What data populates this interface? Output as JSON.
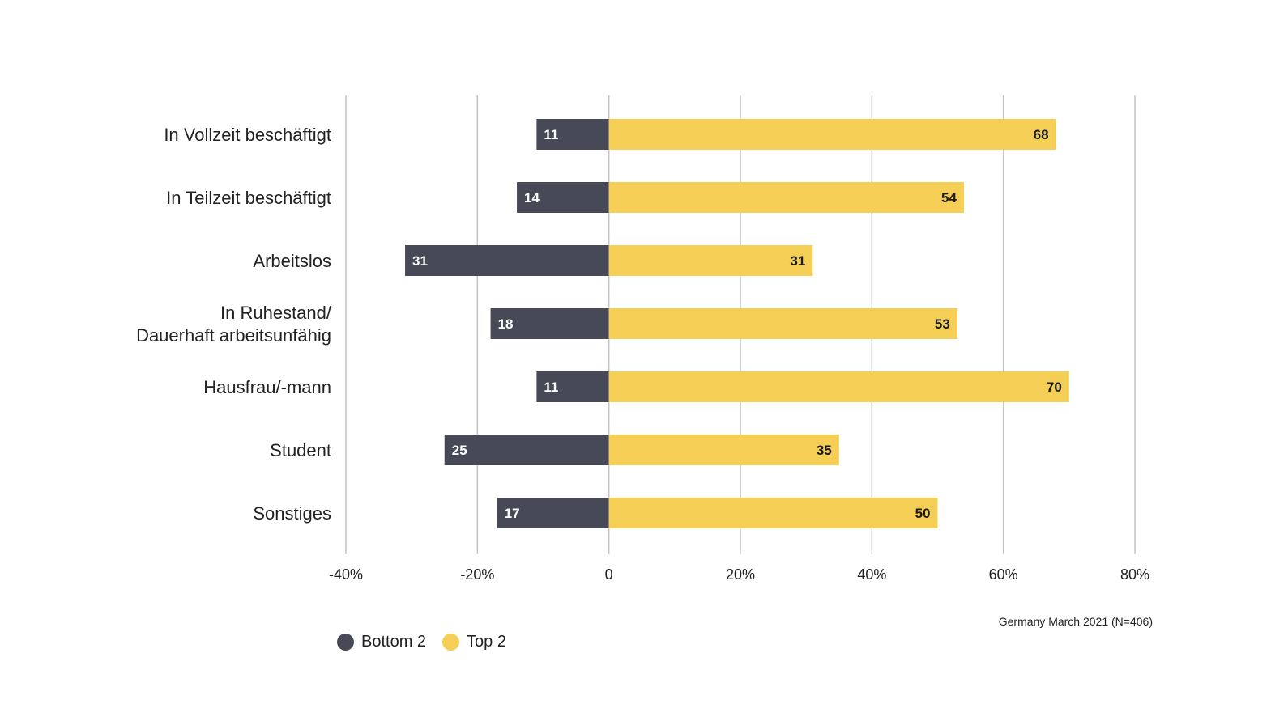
{
  "chart_data": {
    "type": "bar",
    "orientation": "horizontal",
    "stacked": "diverging",
    "categories": [
      [
        "In Vollzeit beschäftigt"
      ],
      [
        "In Teilzeit beschäftigt"
      ],
      [
        "Arbeitslos"
      ],
      [
        "In Ruhestand/",
        "Dauerhaft arbeitsunfähig"
      ],
      [
        "Hausfrau/-mann"
      ],
      [
        "Student"
      ],
      [
        "Sonstiges"
      ]
    ],
    "series": [
      {
        "name": "Bottom 2",
        "color": "#474a56",
        "label_color": "#ffffff",
        "direction": "negative",
        "values": [
          11,
          14,
          31,
          18,
          11,
          25,
          17
        ]
      },
      {
        "name": "Top 2",
        "color": "#f5cf55",
        "label_color": "#1a1a1a",
        "direction": "positive",
        "values": [
          68,
          54,
          31,
          53,
          70,
          35,
          50
        ]
      }
    ],
    "xlim": [
      -40,
      80
    ],
    "xticks": [
      -40,
      -20,
      0,
      20,
      40,
      60,
      80
    ],
    "xtick_labels": [
      "-40%",
      "-20%",
      "0",
      "20%",
      "40%",
      "60%",
      "80%"
    ],
    "grid": true,
    "legend_position": "bottom-left",
    "title": "",
    "xlabel": "",
    "ylabel": "",
    "gridline_color": "#c4c4c4"
  },
  "source_note": "Germany March 2021 (N=406)"
}
